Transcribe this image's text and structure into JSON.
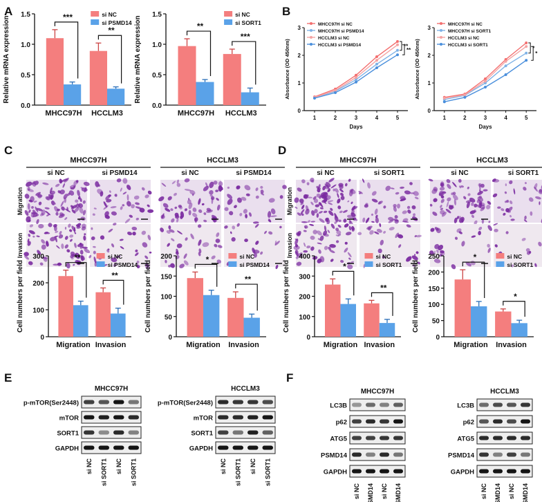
{
  "panel_labels": [
    "A",
    "B",
    "C",
    "D",
    "E",
    "F"
  ],
  "colors": {
    "nc": "#f47e7e",
    "si": "#5aa2e8",
    "wb_bg": "#eeeeee",
    "band": "#151515",
    "micro_bg": "#ece4ec",
    "micro_cell": "#7a2aa0"
  },
  "chart_data": [
    {
      "id": "A1",
      "type": "bar",
      "categories": [
        "MHCC97H",
        "HCCLM3"
      ],
      "series": [
        {
          "name": "si  NC",
          "values": [
            1.1,
            0.89
          ],
          "errors": [
            0.14,
            0.13
          ]
        },
        {
          "name": "si PSMD14",
          "values": [
            0.34,
            0.27
          ],
          "errors": [
            0.04,
            0.03
          ]
        }
      ],
      "ylabel": "Relative mRNA expression",
      "ylim": [
        0,
        1.5
      ],
      "yticks": [
        "0.0",
        "0.5",
        "1.0",
        "1.5"
      ],
      "sig": [
        "***",
        "**"
      ]
    },
    {
      "id": "A2",
      "type": "bar",
      "categories": [
        "MHCC97H",
        "HCCLM3"
      ],
      "series": [
        {
          "name": "si  NC",
          "values": [
            0.97,
            0.84
          ],
          "errors": [
            0.12,
            0.08
          ]
        },
        {
          "name": "si SORT1",
          "values": [
            0.38,
            0.21
          ],
          "errors": [
            0.04,
            0.07
          ]
        }
      ],
      "ylabel": "Relative mRNA expression",
      "ylim": [
        0,
        1.5
      ],
      "yticks": [
        "0.0",
        "0.5",
        "1.0",
        "1.5"
      ],
      "sig": [
        "**",
        "***"
      ]
    },
    {
      "id": "B1",
      "type": "line",
      "x": [
        1,
        2,
        3,
        4,
        5
      ],
      "xticks": [
        "1",
        "2",
        "3",
        "4",
        "5"
      ],
      "series": [
        {
          "name": "MHCC97H si NC",
          "values": [
            0.5,
            0.78,
            1.28,
            1.95,
            2.5
          ]
        },
        {
          "name": "MHCC97H si PSMD14",
          "values": [
            0.47,
            0.7,
            1.12,
            1.68,
            2.18
          ]
        },
        {
          "name": "HCCLM3 si NC",
          "values": [
            0.48,
            0.73,
            1.2,
            1.82,
            2.38
          ]
        },
        {
          "name": "HCCLM3 si PSMD14",
          "values": [
            0.45,
            0.65,
            1.03,
            1.55,
            2.02
          ]
        }
      ],
      "xlabel": "Days",
      "ylabel": "Absorbance (OD 450nm)",
      "ylim": [
        0,
        3
      ],
      "yticks": [
        "0",
        "1",
        "2",
        "3"
      ],
      "sig": [
        "**",
        "**"
      ]
    },
    {
      "id": "B2",
      "type": "line",
      "x": [
        1,
        2,
        3,
        4,
        5
      ],
      "xticks": [
        "1",
        "2",
        "3",
        "4",
        "5"
      ],
      "series": [
        {
          "name": "MHCC97H si NC",
          "values": [
            0.48,
            0.6,
            1.15,
            1.85,
            2.45
          ]
        },
        {
          "name": "MHCC97H si SORT1",
          "values": [
            0.4,
            0.55,
            1.0,
            1.62,
            2.08
          ]
        },
        {
          "name": "HCCLM3 si NC",
          "values": [
            0.45,
            0.57,
            1.07,
            1.78,
            2.32
          ]
        },
        {
          "name": "HCCLM3 si SORT1",
          "values": [
            0.32,
            0.48,
            0.85,
            1.3,
            1.82
          ]
        }
      ],
      "xlabel": "Days",
      "ylabel": "Absorbance (OD 450nm)",
      "ylim": [
        0,
        3
      ],
      "yticks": [
        "0",
        "1",
        "2",
        "3"
      ],
      "sig": [
        "*",
        "*"
      ]
    },
    {
      "id": "C1",
      "type": "bar",
      "categories": [
        "Migration",
        "Invasion"
      ],
      "series": [
        {
          "name": "si  NC",
          "values": [
            225,
            165
          ],
          "errors": [
            22,
            16
          ]
        },
        {
          "name": "si PSMD14",
          "values": [
            117,
            86
          ],
          "errors": [
            15,
            20
          ]
        }
      ],
      "ylabel": "Cell numbers per field",
      "ylim": [
        0,
        300
      ],
      "yticks": [
        "0",
        "100",
        "200",
        "300"
      ],
      "sig": [
        "**",
        "**"
      ]
    },
    {
      "id": "C2",
      "type": "bar",
      "categories": [
        "Migration",
        "Invasion"
      ],
      "series": [
        {
          "name": "si  NC",
          "values": [
            145,
            96
          ],
          "errors": [
            15,
            15
          ]
        },
        {
          "name": "si PSMD14",
          "values": [
            103,
            47
          ],
          "errors": [
            12,
            9
          ]
        }
      ],
      "ylabel": "Cell numbers per field",
      "ylim": [
        0,
        200
      ],
      "yticks": [
        "0",
        "50",
        "100",
        "150",
        "200"
      ],
      "sig": [
        "*",
        "**"
      ]
    },
    {
      "id": "D1",
      "type": "bar",
      "categories": [
        "Migration",
        "Invasion"
      ],
      "series": [
        {
          "name": "si  NC",
          "values": [
            258,
            165
          ],
          "errors": [
            28,
            15
          ]
        },
        {
          "name": "si SORT1",
          "values": [
            162,
            68
          ],
          "errors": [
            25,
            18
          ]
        }
      ],
      "ylabel": "Cell numbers per field",
      "ylim": [
        0,
        400
      ],
      "yticks": [
        "0",
        "100",
        "200",
        "300",
        "400"
      ],
      "sig": [
        "*",
        "**"
      ]
    },
    {
      "id": "D2",
      "type": "bar",
      "categories": [
        "Migration",
        "Invasion"
      ],
      "series": [
        {
          "name": "si  NC",
          "values": [
            177,
            78
          ],
          "errors": [
            30,
            8
          ]
        },
        {
          "name": "si SORT1",
          "values": [
            94,
            42
          ],
          "errors": [
            15,
            9
          ]
        }
      ],
      "ylabel": "Cell numbers per field",
      "ylim": [
        0,
        250
      ],
      "yticks": [
        "0",
        "50",
        "100",
        "150",
        "200",
        "250"
      ],
      "sig": [
        "*",
        "*"
      ]
    }
  ],
  "panel_C": {
    "cells": [
      "MHCC97H",
      "HCCLM3"
    ],
    "conditions": [
      "si  NC",
      "si PSMD14"
    ],
    "rows": [
      "Migration",
      "Invasion"
    ]
  },
  "panel_D": {
    "cells": [
      "MHCC97H",
      "HCCLM3"
    ],
    "conditions": [
      "si  NC",
      "si SORT1"
    ],
    "rows": [
      "Migration",
      "Invasion"
    ]
  },
  "panel_E": {
    "cells": [
      "MHCC97H",
      "HCCLM3"
    ],
    "proteins": [
      "p-mTOR(Ser2448)",
      "mTOR",
      "SORT1",
      "GAPDH"
    ],
    "lanes": [
      "si  NC",
      "si SORT1",
      "si  NC",
      "si SORT1"
    ],
    "intensities": [
      [
        [
          0.8,
          0.7,
          1,
          0.55
        ],
        [
          1,
          0.95,
          1,
          0.9
        ],
        [
          0.85,
          0.45,
          0.9,
          0.5
        ],
        [
          1,
          1,
          1,
          1
        ]
      ],
      [
        [
          0.9,
          0.85,
          0.85,
          0.75
        ],
        [
          0.9,
          0.9,
          0.95,
          1
        ],
        [
          0.8,
          0.55,
          0.95,
          0.65
        ],
        [
          1,
          1,
          1,
          1
        ]
      ]
    ]
  },
  "panel_F": {
    "cells": [
      "MHCC97H",
      "HCCLM3"
    ],
    "proteins": [
      "LC3B",
      "p62",
      "ATG5",
      "PSMD14",
      "GAPDH"
    ],
    "lanes": [
      "si  NC",
      "si PSMD14",
      "si  NC",
      "si PSMD14"
    ],
    "intensities": [
      [
        [
          0.4,
          0.6,
          0.5,
          0.65
        ],
        [
          0.8,
          0.9,
          0.85,
          1
        ],
        [
          0.8,
          0.8,
          0.85,
          0.85
        ],
        [
          0.9,
          0.5,
          0.9,
          0.55
        ],
        [
          1,
          1,
          1,
          1
        ]
      ],
      [
        [
          0.6,
          0.75,
          0.7,
          0.85
        ],
        [
          0.7,
          0.9,
          0.75,
          1
        ],
        [
          0.9,
          0.9,
          0.9,
          0.9
        ],
        [
          0.85,
          0.5,
          0.8,
          0.55
        ],
        [
          1,
          1,
          1,
          1
        ]
      ]
    ]
  }
}
